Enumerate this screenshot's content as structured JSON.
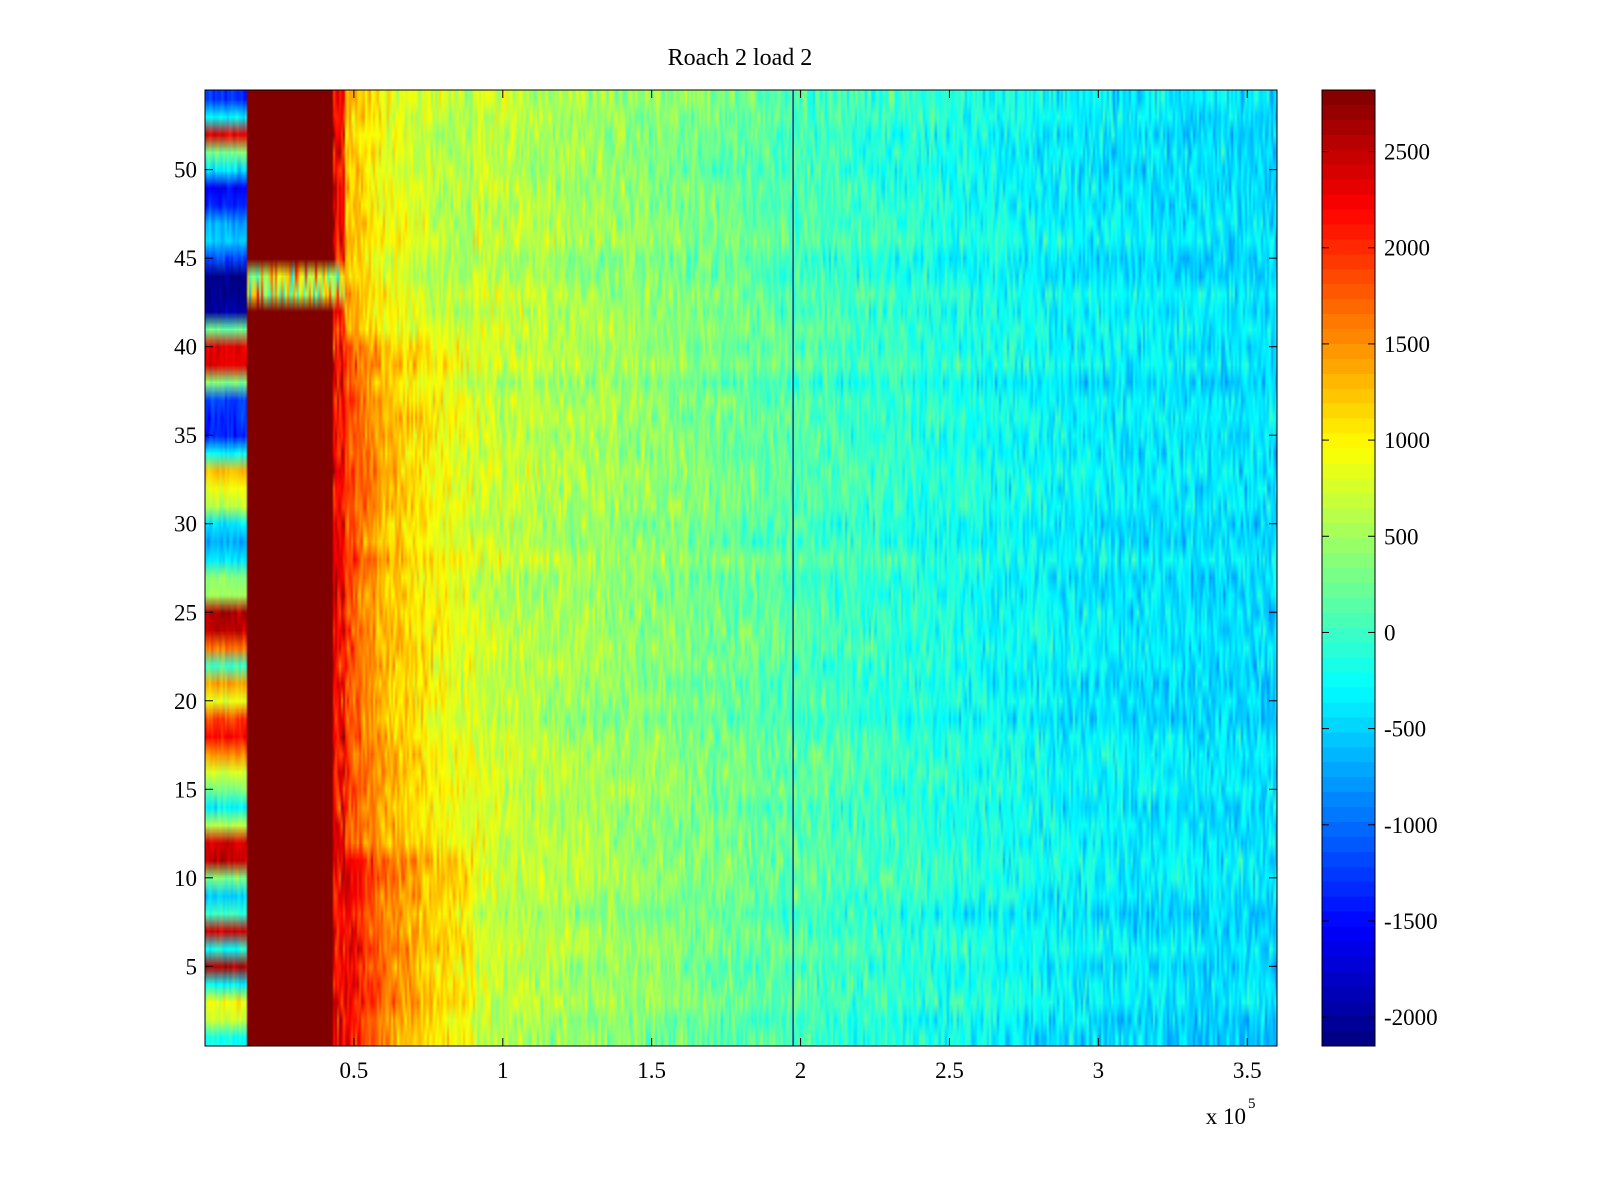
{
  "chart_data": {
    "type": "heatmap",
    "title": "Roach 2 load 2",
    "xlabel": "",
    "ylabel": "",
    "x_multiplier": "x 10",
    "x_multiplier_exponent": "5",
    "xlim": [
      0,
      360000
    ],
    "ylim": [
      0.5,
      54.5
    ],
    "x_ticks": [
      {
        "value": 50000,
        "label": "0.5"
      },
      {
        "value": 100000,
        "label": "1"
      },
      {
        "value": 150000,
        "label": "1.5"
      },
      {
        "value": 200000,
        "label": "2"
      },
      {
        "value": 250000,
        "label": "2.5"
      },
      {
        "value": 300000,
        "label": "3"
      },
      {
        "value": 350000,
        "label": "3.5"
      }
    ],
    "y_ticks": [
      {
        "value": 5,
        "label": "5"
      },
      {
        "value": 10,
        "label": "10"
      },
      {
        "value": 15,
        "label": "15"
      },
      {
        "value": 20,
        "label": "20"
      },
      {
        "value": 25,
        "label": "25"
      },
      {
        "value": 30,
        "label": "30"
      },
      {
        "value": 35,
        "label": "35"
      },
      {
        "value": 40,
        "label": "40"
      },
      {
        "value": 45,
        "label": "45"
      },
      {
        "value": 50,
        "label": "50"
      }
    ],
    "rows": 54,
    "colormap": "jet",
    "clim": [
      -2150,
      2820
    ],
    "colorbar": {
      "ticks": [
        {
          "value": 2500,
          "label": "2500"
        },
        {
          "value": 2000,
          "label": "2000"
        },
        {
          "value": 1500,
          "label": "1500"
        },
        {
          "value": 1000,
          "label": "1000"
        },
        {
          "value": 500,
          "label": "500"
        },
        {
          "value": 0,
          "label": "0"
        },
        {
          "value": -500,
          "label": "-500"
        },
        {
          "value": -1000,
          "label": "-1000"
        },
        {
          "value": -1500,
          "label": "-1500"
        },
        {
          "value": -2000,
          "label": "-2000"
        }
      ]
    },
    "saturated_band": {
      "x_start": 14000,
      "x_end": 47000,
      "value": 2820
    },
    "first_band_x_end": 14000,
    "first_band_row_values": [
      -200,
      700,
      900,
      -300,
      2600,
      -200,
      2400,
      0,
      -500,
      300,
      2500,
      2400,
      600,
      -300,
      300,
      800,
      1500,
      2200,
      1900,
      800,
      1400,
      0,
      1600,
      2500,
      2600,
      500,
      400,
      -400,
      -700,
      -400,
      600,
      900,
      1300,
      -300,
      -1400,
      -1300,
      -1200,
      300,
      2300,
      2300,
      200,
      -2000,
      -2100,
      -2100,
      -1200,
      -500,
      -700,
      -1400,
      -1600,
      -400,
      300,
      2300,
      -300,
      -1300
    ],
    "gap_rows": [
      43,
      44
    ],
    "vertical_line_x": 197500,
    "profile": [
      {
        "x": 47000,
        "value": 1900
      },
      {
        "x": 60000,
        "value": 1300
      },
      {
        "x": 80000,
        "value": 900
      },
      {
        "x": 100000,
        "value": 650
      },
      {
        "x": 150000,
        "value": 400
      },
      {
        "x": 200000,
        "value": 100
      },
      {
        "x": 250000,
        "value": -150
      },
      {
        "x": 300000,
        "value": -350
      },
      {
        "x": 360000,
        "value": -450
      }
    ]
  }
}
